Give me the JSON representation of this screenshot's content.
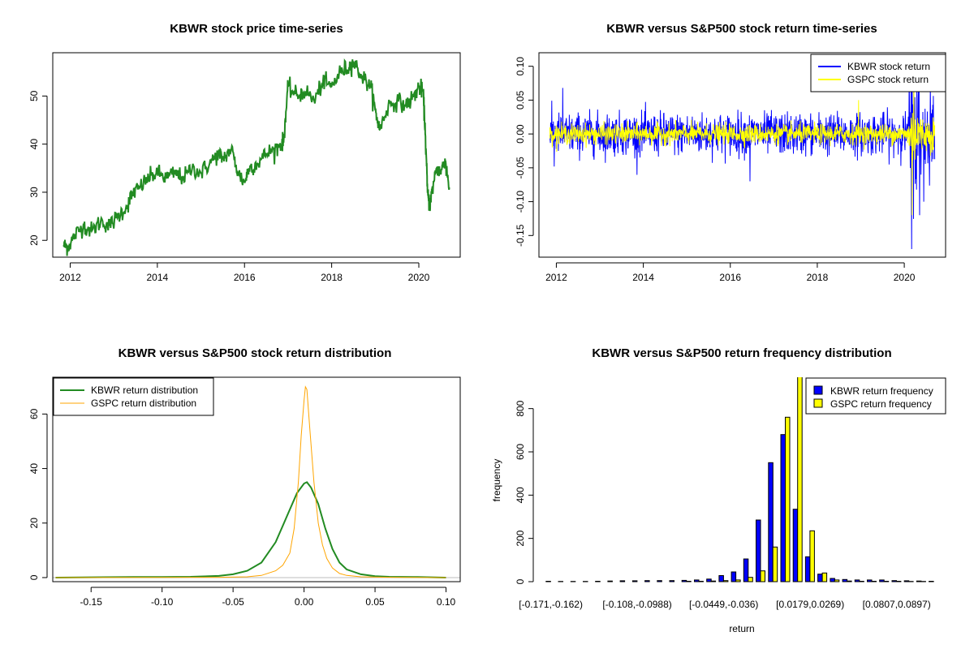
{
  "colors": {
    "green": "#228B22",
    "blue": "#0000FF",
    "yellow": "#FFFF00",
    "orange": "#FFA500",
    "baseline": "#BEBEBE"
  },
  "chart_data": [
    {
      "id": "price",
      "type": "line",
      "title": "KBWR stock price time-series",
      "xlabel": "",
      "ylabel": "",
      "xlim": [
        2011.6,
        2020.95
      ],
      "ylim": [
        16.5,
        59
      ],
      "xticks": [
        2012,
        2014,
        2016,
        2018,
        2020
      ],
      "xtick_labels": [
        "2012",
        "2014",
        "2016",
        "2018",
        "2020"
      ],
      "yticks": [
        20,
        30,
        40,
        50
      ],
      "ytick_labels": [
        "20",
        "30",
        "40",
        "50"
      ],
      "series": [
        {
          "color": "#228B22",
          "x": [
            2011.85,
            2011.95,
            2012.1,
            2012.3,
            2012.5,
            2012.7,
            2012.9,
            2013.1,
            2013.3,
            2013.45,
            2013.6,
            2013.8,
            2014.0,
            2014.2,
            2014.4,
            2014.6,
            2014.8,
            2015.0,
            2015.2,
            2015.4,
            2015.5,
            2015.7,
            2015.85,
            2016.0,
            2016.1,
            2016.3,
            2016.5,
            2016.7,
            2016.85,
            2016.9,
            2017.0,
            2017.2,
            2017.4,
            2017.6,
            2017.8,
            2018.0,
            2018.2,
            2018.4,
            2018.5,
            2018.7,
            2018.9,
            2019.0,
            2019.1,
            2019.3,
            2019.5,
            2019.7,
            2019.9,
            2020.0,
            2020.1,
            2020.15,
            2020.2,
            2020.25,
            2020.3,
            2020.4,
            2020.5,
            2020.6,
            2020.7
          ],
          "y": [
            19,
            18.5,
            21,
            23,
            22,
            24,
            23,
            25,
            27,
            30,
            31,
            33,
            34,
            33,
            34,
            33,
            35,
            34,
            36,
            38,
            37,
            39,
            34,
            32,
            35,
            36,
            38,
            39,
            40,
            41,
            52,
            50,
            51,
            49,
            53,
            52,
            55,
            56,
            57,
            54,
            52,
            47,
            43,
            48,
            49,
            48,
            50,
            52,
            51,
            42,
            30,
            27,
            30,
            35,
            34,
            37,
            31
          ]
        }
      ]
    },
    {
      "id": "returns",
      "type": "line",
      "title": "KBWR versus S&P500 stock return time-series",
      "xlabel": "",
      "ylabel": "",
      "xlim": [
        2011.6,
        2020.95
      ],
      "ylim": [
        -0.182,
        0.12
      ],
      "xticks": [
        2012,
        2014,
        2016,
        2018,
        2020
      ],
      "xtick_labels": [
        "2012",
        "2014",
        "2016",
        "2018",
        "2020"
      ],
      "yticks": [
        -0.15,
        -0.1,
        -0.05,
        0.0,
        0.05,
        0.1
      ],
      "ytick_labels": [
        "-0.15",
        "-0.10",
        "-0.05",
        "0.00",
        "0.05",
        "0.10"
      ],
      "legend_position": "top-right",
      "series": [
        {
          "name": "KBWR stock return",
          "color": "#0000FF",
          "sd": 0.015,
          "spikes": [
            {
              "x": 2012.15,
              "y": 0.068
            },
            {
              "x": 2011.95,
              "y": -0.048
            },
            {
              "x": 2016.45,
              "y": -0.07
            },
            {
              "x": 2020.17,
              "y": -0.17
            },
            {
              "x": 2020.22,
              "y": 0.1
            },
            {
              "x": 2020.35,
              "y": -0.12
            },
            {
              "x": 2020.45,
              "y": -0.1
            },
            {
              "x": 2020.6,
              "y": 0.07
            }
          ]
        },
        {
          "name": "GSPC stock return",
          "color": "#FFFF00",
          "sd": 0.007,
          "spikes": [
            {
              "x": 2020.18,
              "y": -0.12
            },
            {
              "x": 2020.22,
              "y": 0.09
            },
            {
              "x": 2018.95,
              "y": 0.05
            }
          ]
        }
      ]
    },
    {
      "id": "density",
      "type": "line",
      "title": "KBWR versus S&P500 stock return distribution",
      "xlabel": "",
      "ylabel": "",
      "xlim": [
        -0.177,
        0.11
      ],
      "ylim": [
        -1.5,
        73.5
      ],
      "xticks": [
        -0.15,
        -0.1,
        -0.05,
        0.0,
        0.05,
        0.1
      ],
      "xtick_labels": [
        "-0.15",
        "-0.10",
        "-0.05",
        "0.00",
        "0.05",
        "0.10"
      ],
      "yticks": [
        0,
        20,
        40,
        60
      ],
      "ytick_labels": [
        "0",
        "20",
        "40",
        "60"
      ],
      "legend_position": "top-left",
      "series": [
        {
          "name": "KBWR return distribution",
          "color": "#228B22",
          "x": [
            -0.175,
            -0.15,
            -0.12,
            -0.1,
            -0.08,
            -0.06,
            -0.05,
            -0.04,
            -0.03,
            -0.02,
            -0.015,
            -0.01,
            -0.005,
            0.0,
            0.002,
            0.005,
            0.01,
            0.015,
            0.02,
            0.025,
            0.03,
            0.04,
            0.05,
            0.06,
            0.08,
            0.1
          ],
          "y": [
            0,
            0.1,
            0.2,
            0.2,
            0.3,
            0.6,
            1.2,
            2.5,
            5.5,
            13,
            19,
            25,
            31,
            34.5,
            35,
            33,
            27,
            18,
            10.5,
            5.5,
            3,
            1.2,
            0.5,
            0.3,
            0.2,
            0
          ]
        },
        {
          "name": "GSPC return distribution",
          "color": "#FFA500",
          "x": [
            -0.175,
            -0.1,
            -0.06,
            -0.04,
            -0.03,
            -0.02,
            -0.015,
            -0.01,
            -0.007,
            -0.004,
            -0.002,
            0.0,
            0.001,
            0.002,
            0.004,
            0.007,
            0.01,
            0.013,
            0.016,
            0.02,
            0.025,
            0.03,
            0.04,
            0.06,
            0.1
          ],
          "y": [
            0,
            0.05,
            0.1,
            0.3,
            0.8,
            2.5,
            4.5,
            9,
            18,
            35,
            52,
            65,
            70,
            69,
            55,
            35,
            20,
            12,
            7,
            3.5,
            1.5,
            0.8,
            0.3,
            0.1,
            0
          ]
        }
      ]
    },
    {
      "id": "frequency",
      "type": "bar",
      "title": "KBWR versus S&P500 return frequency distribution",
      "xlabel": "return",
      "ylabel": "frequency",
      "ylim": [
        0,
        945
      ],
      "yticks": [
        0,
        200,
        400,
        600,
        800
      ],
      "ytick_labels": [
        "0",
        "200",
        "400",
        "600",
        "800"
      ],
      "legend_position": "top-right",
      "categories": [
        "[-0.171,-0.162)",
        "[-0.162,-0.153)",
        "[-0.153,-0.144)",
        "[-0.144,-0.135)",
        "[-0.135,-0.126)",
        "[-0.126,-0.117)",
        "[-0.117,-0.108)",
        "[-0.108,-0.0988)",
        "[-0.0988,-0.0898)",
        "[-0.0898,-0.0808)",
        "[-0.0808,-0.0718)",
        "[-0.0718,-0.0628)",
        "[-0.0628,-0.0538)",
        "[-0.0538,-0.0449)",
        "[-0.0449,-0.036)",
        "[-0.036,-0.027)",
        "[-0.027,-0.018)",
        "[-0.018,-0.009)",
        "[-0.009,0.0001)",
        "[0.0001,0.0089)",
        "[0.0089,0.0179)",
        "[0.0179,0.0269)",
        "[0.0269,0.0359)",
        "[0.0359,0.0449)",
        "[0.0449,0.0538)",
        "[0.0538,0.0628)",
        "[0.0628,0.0718)",
        "[0.0718,0.0807)",
        "[0.0807,0.0897)",
        "[0.0897,0.0987)",
        "[0.0987,0.108)",
        "[0.108,0.117)"
      ],
      "visible_category_labels": [
        "[-0.171,-0.162)",
        "[-0.108,-0.0988)",
        "[-0.0449,-0.036)",
        "[0.0179,0.0269)",
        "[0.0807,0.0897)"
      ],
      "series": [
        {
          "name": "KBWR return frequency",
          "color": "#0000FF",
          "values": [
            2,
            1,
            1,
            1,
            2,
            3,
            4,
            4,
            5,
            5,
            5,
            6,
            8,
            12,
            28,
            45,
            105,
            285,
            550,
            680,
            335,
            115,
            35,
            15,
            10,
            8,
            8,
            8,
            5,
            4,
            3,
            2
          ]
        },
        {
          "name": "GSPC return frequency",
          "color": "#FFFF00",
          "values": [
            0,
            0,
            0,
            0,
            0,
            0,
            0,
            0,
            0,
            0,
            0,
            2,
            2,
            3,
            5,
            8,
            20,
            50,
            160,
            760,
            1020,
            235,
            40,
            8,
            3,
            2,
            2,
            2,
            2,
            1,
            1,
            0
          ]
        }
      ]
    }
  ]
}
